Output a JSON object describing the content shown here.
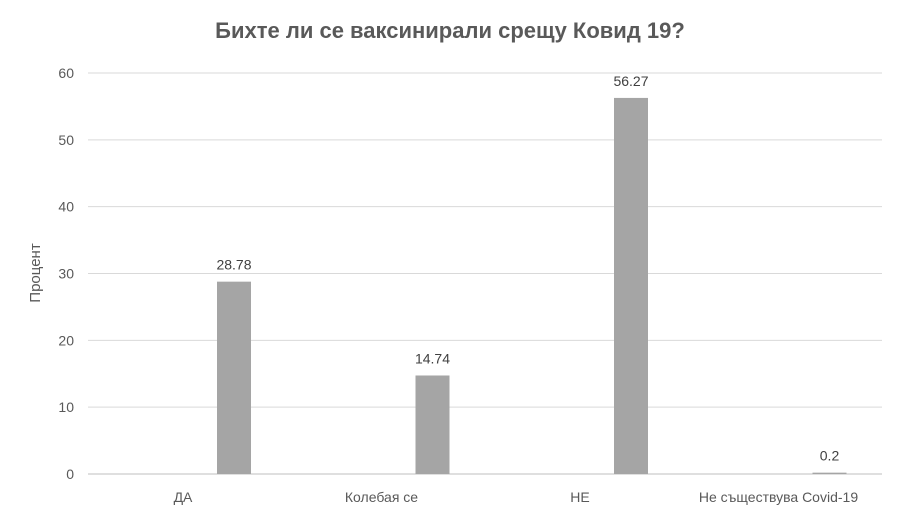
{
  "chart_data": {
    "type": "bar",
    "title": "Бихте ли се ваксинирали срещу Ковид 19?",
    "xlabel": "",
    "ylabel": "Процент",
    "categories": [
      "ДА",
      "Колебая се",
      "НЕ",
      "Не съществува Covid-19"
    ],
    "values": [
      28.78,
      14.74,
      56.27,
      0.2
    ],
    "data_labels": [
      "28.78",
      "14.74",
      "56.27",
      "0.2"
    ],
    "ylim": [
      0,
      60
    ],
    "yticks": [
      0,
      10,
      20,
      30,
      40,
      50,
      60
    ],
    "grid": true,
    "legend": "none",
    "bar_color": "#a5a5a5"
  }
}
